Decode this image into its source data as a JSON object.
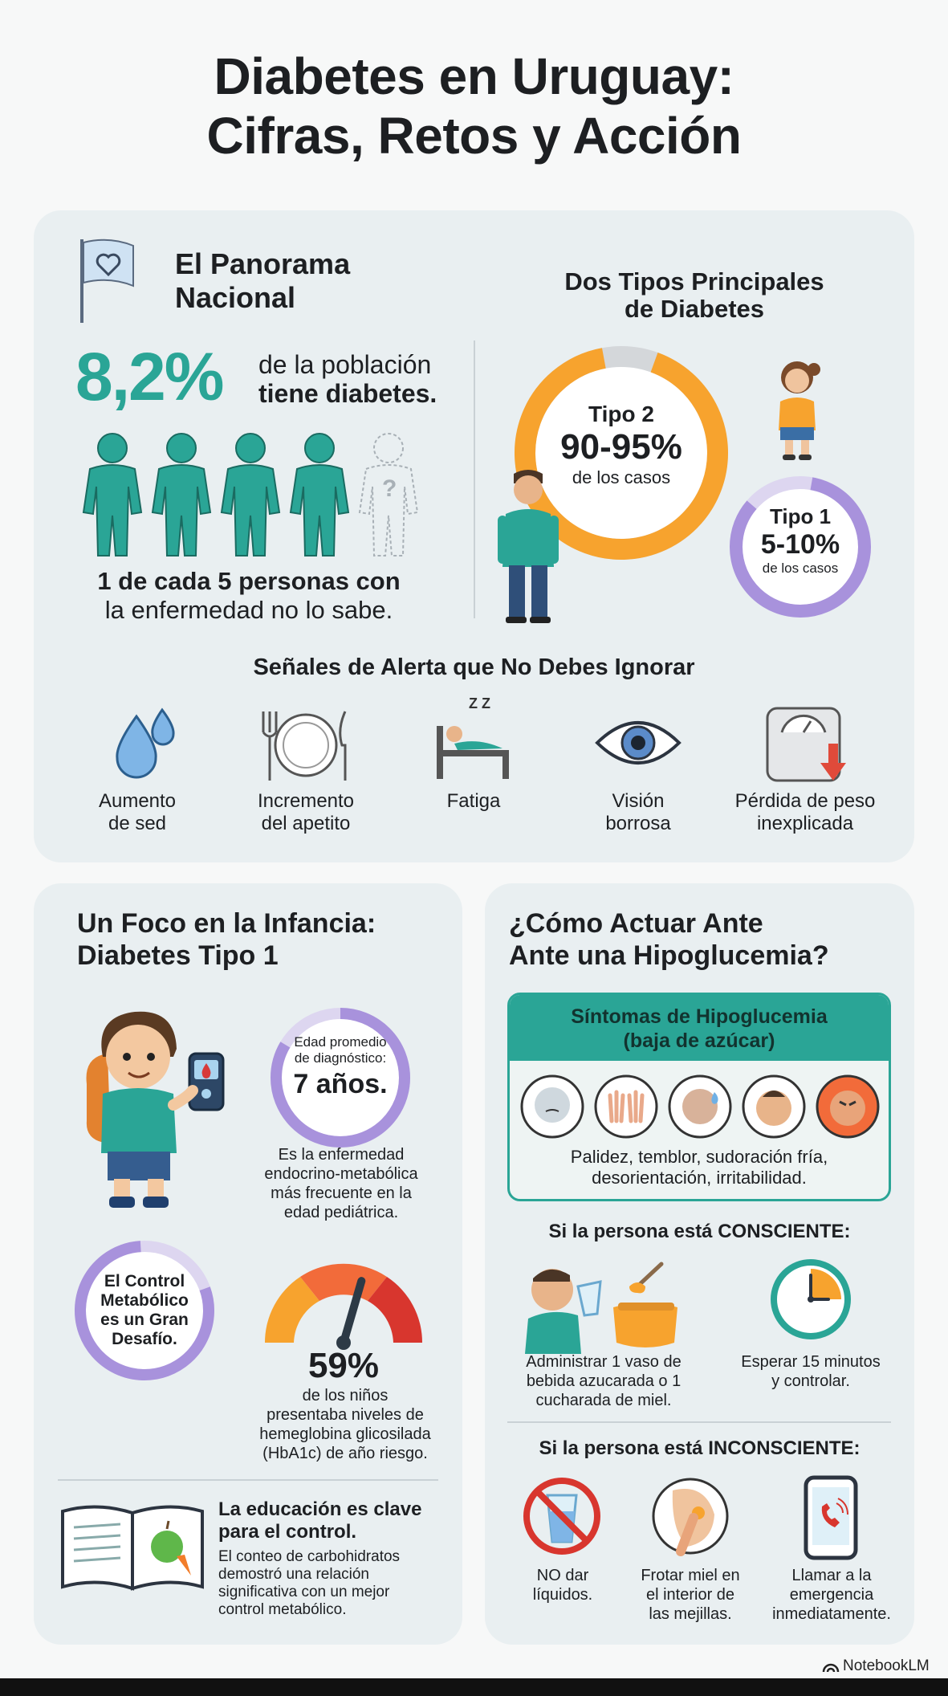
{
  "title": {
    "line1": "Diabetes en Uruguay:",
    "line2": "Cifras, Retos y Acción"
  },
  "colors": {
    "teal": "#2aa596",
    "orange": "#f7a32e",
    "purple": "#a892dc",
    "panel": "#e9eff1"
  },
  "panorama": {
    "title_line1": "El Panorama",
    "title_line2": "Nacional",
    "stat": "8,2%",
    "stat_line1": "de la población",
    "stat_line2": "tiene diabetes.",
    "undiagnosed_line1": "1 de cada 5 personas con",
    "undiagnosed_line2": "la enfermedad no lo sabe.",
    "unknown_mark": "?",
    "undiagnosed_ratio": 0.2
  },
  "types": {
    "title_line1": "Dos Tipos Principales",
    "title_line2": "de Diabetes",
    "type2": {
      "label": "Tipo 2",
      "value": "90-95%",
      "note": "de los casos"
    },
    "type1": {
      "label": "Tipo 1",
      "value": "5-10%",
      "note": "de los casos"
    }
  },
  "alerts": {
    "title": "Señales de Alerta que No Debes Ignorar",
    "items": [
      {
        "line1": "Aumento",
        "line2": "de sed",
        "icon": "water-drops-icon"
      },
      {
        "line1": "Incremento",
        "line2": "del apetito",
        "icon": "plate-cutlery-icon"
      },
      {
        "line1": "Fatiga",
        "line2": "",
        "icon": "sleeping-person-icon"
      },
      {
        "line1": "Visión",
        "line2": "borrosa",
        "icon": "eye-icon"
      },
      {
        "line1": "Pérdida de peso",
        "line2": "inexplicada",
        "icon": "scale-down-icon"
      }
    ],
    "zz": "Z Z"
  },
  "childhood": {
    "title_line1": "Un Foco en la Infancia:",
    "title_line2": "Diabetes Tipo 1",
    "age_label_line1": "Edad promedio",
    "age_label_line2": "de diagnóstico:",
    "age_value": "7 años.",
    "frequent_line1": "Es la enfermedad",
    "frequent_line2": "endocrino-metabólica",
    "frequent_line3": "más frecuente en la",
    "frequent_line4": "edad pediátrica.",
    "challenge_line1": "El Control",
    "challenge_line2": "Metabólico",
    "challenge_line3": "es un Gran",
    "challenge_line4": "Desafío.",
    "risk_value": "59%",
    "risk_fraction": 0.59,
    "risk_line1": "de los niños",
    "risk_line2": "presentaba niveles de",
    "risk_line3": "hemeglobina glicosilada",
    "risk_line4": "(HbA1c) de año riesgo.",
    "edu_title_line1": "La educación es clave",
    "edu_title_line2": "para el control.",
    "edu_line1": "El conteo de carbohidratos",
    "edu_line2": "demostró una relación",
    "edu_line3": "significativa con un mejor",
    "edu_line4": "control metabólico."
  },
  "hypo": {
    "title_line1": "¿Cómo Actuar Ante",
    "title_line2": "Ante una Hipoglucemia?",
    "symptoms_title_line1": "Síntomas de Hipoglucemia",
    "symptoms_title_line2": "(baja de azúcar)",
    "symptoms_line1": "Palidez, temblor, sudoración fría,",
    "symptoms_line2": "desorientación, irritabilidad.",
    "conscious_title": "Si la persona está CONSCIENTE:",
    "conscious_a_line1": "Administrar 1 vaso de",
    "conscious_a_line2": "bebida azucarada o 1",
    "conscious_a_line3": "cucharada de miel.",
    "conscious_b_line1": "Esperar 15 minutos",
    "conscious_b_line2": "y controlar.",
    "unconscious_title": "Si la persona está INCONSCIENTE:",
    "u1_line1": "NO dar",
    "u1_line2": "líquidos.",
    "u2_line1": "Frotar miel en",
    "u2_line2": "el interior de",
    "u2_line3": "las mejillas.",
    "u3_line1": "Llamar a la",
    "u3_line2": "emergencia",
    "u3_line3": "inmediatamente."
  },
  "footer": {
    "brand": "NotebookLM"
  }
}
